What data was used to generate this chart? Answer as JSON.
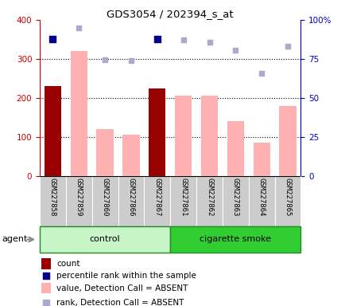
{
  "title": "GDS3054 / 202394_s_at",
  "samples": [
    "GSM227858",
    "GSM227859",
    "GSM227860",
    "GSM227866",
    "GSM227867",
    "GSM227861",
    "GSM227862",
    "GSM227863",
    "GSM227864",
    "GSM227865"
  ],
  "groups": [
    "control",
    "control",
    "control",
    "control",
    "control",
    "cigarette smoke",
    "cigarette smoke",
    "cigarette smoke",
    "cigarette smoke",
    "cigarette smoke"
  ],
  "count_values": [
    230,
    null,
    null,
    null,
    225,
    null,
    null,
    null,
    null,
    null
  ],
  "value_absent": [
    null,
    320,
    120,
    105,
    null,
    205,
    205,
    140,
    85,
    180
  ],
  "rank_absent_raw": [
    null,
    380,
    298,
    296,
    null,
    348,
    342,
    322,
    264,
    332
  ],
  "percentile_rank_raw": [
    350,
    null,
    null,
    null,
    350,
    null,
    null,
    null,
    null,
    null
  ],
  "left_ylim": [
    0,
    400
  ],
  "right_ylim": [
    0,
    100
  ],
  "left_yticks": [
    0,
    100,
    200,
    300,
    400
  ],
  "right_yticks": [
    0,
    25,
    50,
    75,
    100
  ],
  "right_yticklabels": [
    "0",
    "25",
    "50",
    "75",
    "100%"
  ],
  "left_color": "#cc0000",
  "right_color": "#0000cc",
  "bar_count_color": "#990000",
  "bar_absent_color": "#ffb0b0",
  "scatter_percentile_color": "#00008b",
  "scatter_rank_absent_color": "#aaaacc",
  "control_color_light": "#c8f5c8",
  "control_color_dark": "#6de06d",
  "smoke_color": "#32cd32",
  "xtick_bg": "#cccccc",
  "agent_label": "agent",
  "legend_items": [
    {
      "color": "#990000",
      "type": "rect",
      "label": "count"
    },
    {
      "color": "#00008b",
      "type": "square",
      "label": "percentile rank within the sample"
    },
    {
      "color": "#ffb0b0",
      "type": "rect",
      "label": "value, Detection Call = ABSENT"
    },
    {
      "color": "#aaaacc",
      "type": "square",
      "label": "rank, Detection Call = ABSENT"
    }
  ],
  "figsize": [
    4.35,
    3.84
  ],
  "dpi": 100
}
